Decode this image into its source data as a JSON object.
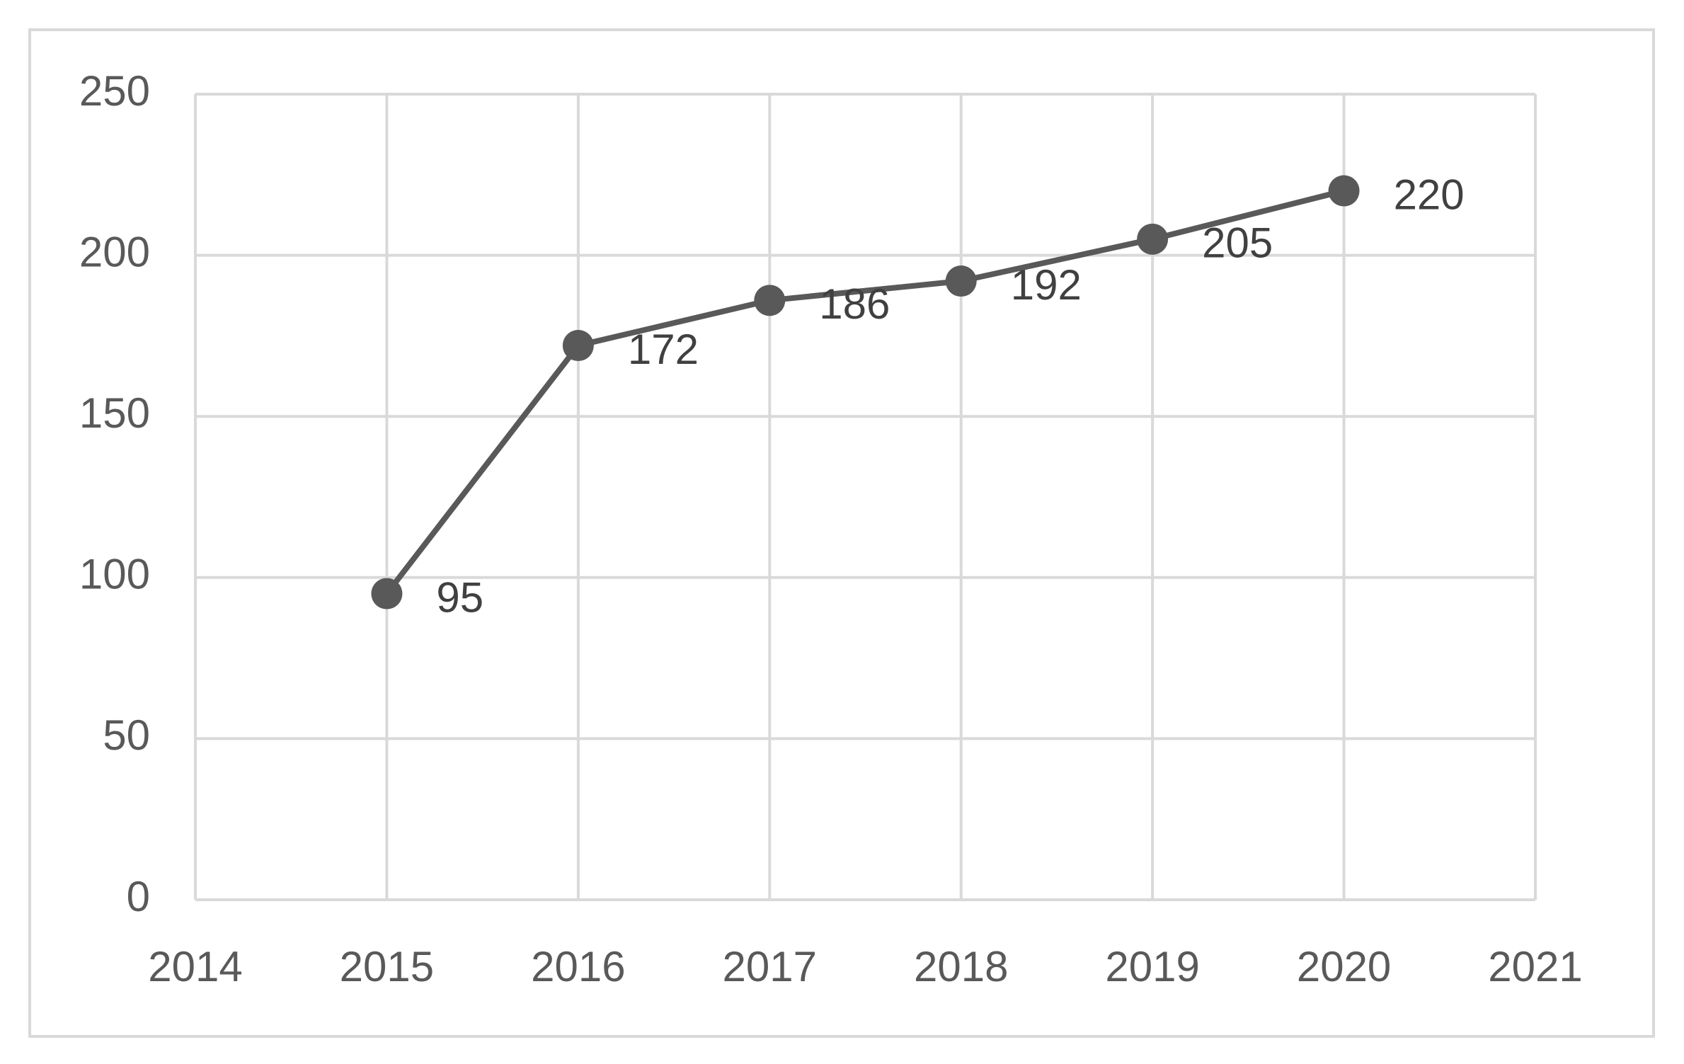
{
  "chart_data": {
    "type": "line",
    "x": [
      2015,
      2016,
      2017,
      2018,
      2019,
      2020
    ],
    "series": [
      {
        "color": "#595959",
        "values": [
          95,
          172,
          186,
          192,
          205,
          220
        ]
      }
    ],
    "xlim": [
      2014,
      2021
    ],
    "xticks": [
      2014,
      2015,
      2016,
      2017,
      2018,
      2019,
      2020,
      2021
    ],
    "ylim": [
      0,
      250
    ],
    "yticks": [
      0,
      50,
      100,
      150,
      200,
      250
    ],
    "grid": true
  }
}
